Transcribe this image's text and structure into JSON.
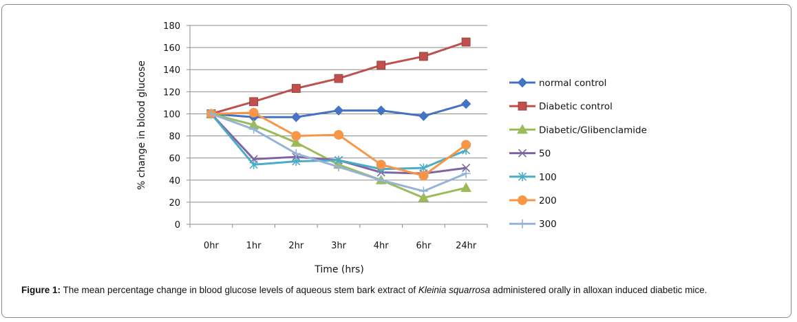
{
  "chart_data": {
    "type": "line",
    "categories": [
      "0hr",
      "1hr",
      "2hr",
      "3hr",
      "4hr",
      "6hr",
      "24hr"
    ],
    "ylabel": "% change in blood glucose",
    "xlabel": "Time (hrs)",
    "ylim": [
      0,
      180
    ],
    "yticks": [
      0,
      20,
      40,
      60,
      80,
      100,
      120,
      140,
      160,
      180
    ],
    "grid": "horizontal",
    "legend_position": "right",
    "series": [
      {
        "name": "normal control",
        "color": "#4472C4",
        "marker": "diamond",
        "values": [
          100,
          97,
          97,
          103,
          103,
          98,
          109
        ]
      },
      {
        "name": "Diabetic control",
        "color": "#C0504D",
        "marker": "square",
        "values": [
          100,
          111,
          123,
          132,
          144,
          152,
          165
        ]
      },
      {
        "name": "Diabetic/Glibenclamide",
        "color": "#9BBB59",
        "marker": "triangle",
        "values": [
          100,
          90,
          74,
          54,
          40,
          24,
          33
        ]
      },
      {
        "name": "50",
        "color": "#8064A2",
        "marker": "x",
        "values": [
          100,
          59,
          61,
          58,
          47,
          46,
          51
        ]
      },
      {
        "name": "100",
        "color": "#4BACC6",
        "marker": "star",
        "values": [
          100,
          54,
          57,
          58,
          50,
          51,
          67
        ]
      },
      {
        "name": "200",
        "color": "#F79646",
        "marker": "circle",
        "values": [
          100,
          101,
          80,
          81,
          54,
          44,
          72
        ]
      },
      {
        "name": "300",
        "color": "#95B3D7",
        "marker": "plus",
        "values": [
          100,
          86,
          64,
          52,
          40,
          30,
          46
        ]
      }
    ]
  },
  "caption": {
    "label": "Figure 1:",
    "text_before": " The mean percentage change in blood glucose levels of aqueous stem bark extract of ",
    "species": "Kleinia squarrosa",
    "text_after": " administered orally in alloxan induced diabetic mice."
  }
}
